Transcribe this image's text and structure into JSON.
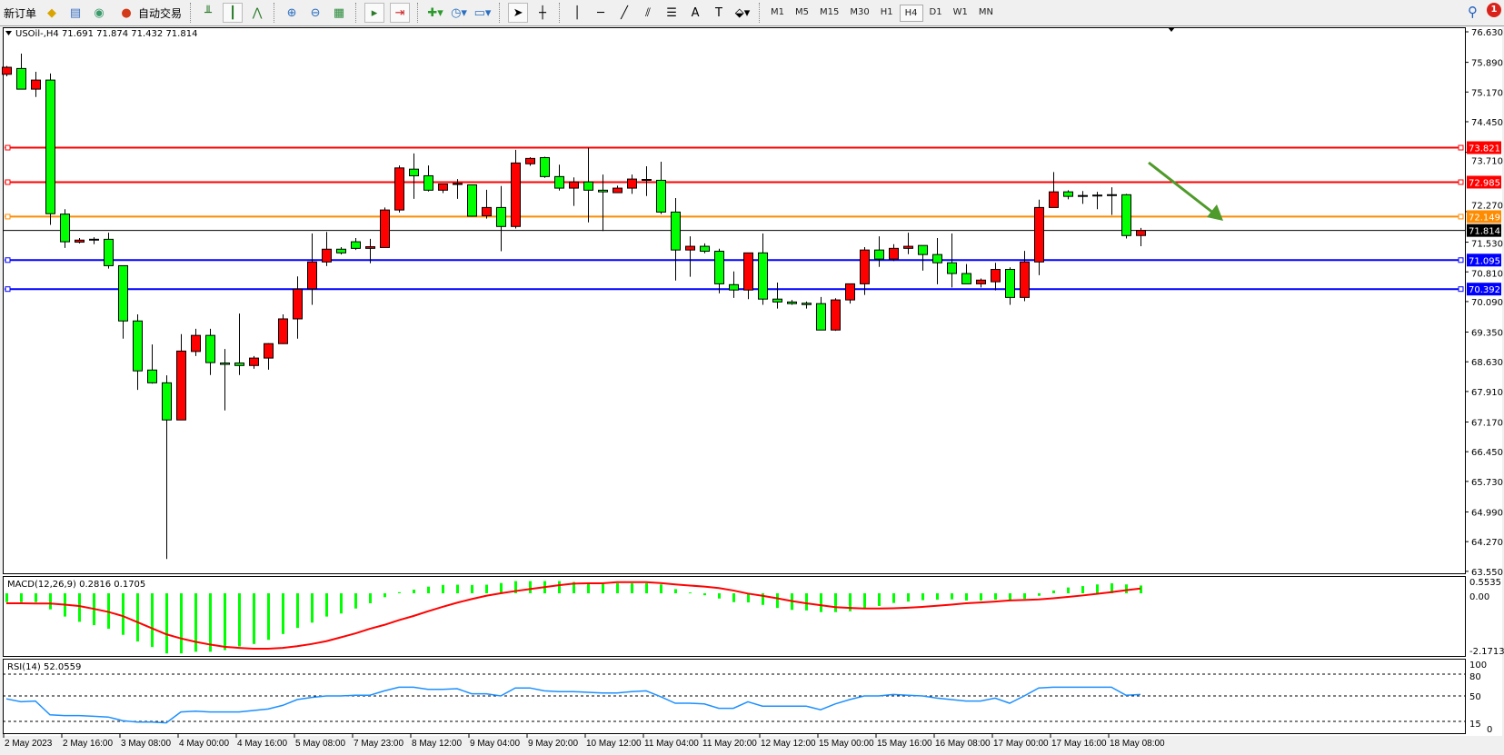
{
  "toolbar": {
    "new_order_label": "新订单",
    "auto_trade_label": "自动交易",
    "timeframes": [
      "M1",
      "M5",
      "M15",
      "M30",
      "H1",
      "H4",
      "D1",
      "W1",
      "MN"
    ],
    "active_timeframe": "H4",
    "notification_count": "1"
  },
  "chart": {
    "header": "USOil-,H4  71.691 71.874 71.432 71.814",
    "up_color": "#ff0000",
    "down_color": "#00ff00",
    "price_ticks": [
      "76.630",
      "75.890",
      "75.170",
      "74.450",
      "73.710",
      "72.270",
      "71.530",
      "70.810",
      "70.090",
      "69.350",
      "68.630",
      "67.910",
      "67.170",
      "66.450",
      "65.730",
      "64.990",
      "64.270",
      "63.550"
    ],
    "levels": [
      {
        "price": 73.821,
        "label": "73.821",
        "color": "#ff0000"
      },
      {
        "price": 72.985,
        "label": "72.985",
        "color": "#ff0000"
      },
      {
        "price": 72.149,
        "label": "72.149",
        "color": "#ff8c00"
      },
      {
        "price": 71.095,
        "label": "71.095",
        "color": "#0000ff"
      },
      {
        "price": 70.392,
        "label": "70.392",
        "color": "#0000ff"
      }
    ],
    "bid": {
      "price": 71.814,
      "label": "71.814",
      "color": "#000000"
    },
    "arrow_color": "#4e9a2a",
    "candles": [
      [
        75.6,
        75.8,
        75.55,
        75.77
      ],
      [
        75.74,
        76.1,
        75.24,
        75.24
      ],
      [
        75.24,
        75.66,
        75.05,
        75.46
      ],
      [
        75.46,
        75.62,
        71.95,
        72.22
      ],
      [
        72.21,
        72.33,
        71.39,
        71.54
      ],
      [
        71.53,
        71.63,
        71.5,
        71.58
      ],
      [
        71.59,
        71.65,
        71.48,
        71.59
      ],
      [
        71.6,
        71.76,
        70.89,
        70.96
      ],
      [
        70.96,
        70.96,
        69.19,
        69.62
      ],
      [
        69.62,
        69.78,
        67.95,
        68.41
      ],
      [
        68.43,
        69.05,
        68.1,
        68.12
      ],
      [
        68.12,
        68.3,
        63.85,
        67.22
      ],
      [
        67.22,
        69.3,
        67.22,
        68.89
      ],
      [
        68.88,
        69.43,
        68.77,
        69.27
      ],
      [
        69.27,
        69.43,
        68.31,
        68.61
      ],
      [
        68.6,
        68.94,
        67.45,
        68.59
      ],
      [
        68.6,
        69.8,
        68.31,
        68.54
      ],
      [
        68.54,
        68.77,
        68.46,
        68.72
      ],
      [
        68.72,
        69.08,
        68.44,
        69.07
      ],
      [
        69.07,
        69.78,
        69.06,
        69.67
      ],
      [
        69.67,
        70.7,
        69.19,
        70.39
      ],
      [
        70.4,
        71.74,
        70.01,
        71.05
      ],
      [
        71.05,
        71.78,
        70.95,
        71.36
      ],
      [
        71.36,
        71.41,
        71.23,
        71.27
      ],
      [
        71.54,
        71.63,
        71.34,
        71.38
      ],
      [
        71.38,
        71.61,
        71.02,
        71.42
      ],
      [
        71.4,
        72.37,
        71.4,
        72.31
      ],
      [
        72.31,
        73.39,
        72.25,
        73.33
      ],
      [
        73.3,
        73.68,
        72.58,
        73.14
      ],
      [
        73.14,
        73.39,
        72.76,
        72.79
      ],
      [
        72.79,
        72.95,
        72.72,
        72.94
      ],
      [
        72.94,
        73.06,
        72.58,
        72.94
      ],
      [
        72.92,
        72.92,
        72.15,
        72.16
      ],
      [
        72.17,
        72.8,
        72.1,
        72.37
      ],
      [
        72.37,
        72.89,
        71.31,
        71.91
      ],
      [
        71.91,
        73.77,
        71.86,
        73.45
      ],
      [
        73.43,
        73.59,
        73.38,
        73.56
      ],
      [
        73.58,
        73.6,
        73.09,
        73.12
      ],
      [
        73.12,
        73.41,
        72.78,
        72.84
      ],
      [
        72.84,
        73.1,
        72.41,
        72.99
      ],
      [
        72.99,
        73.82,
        72.01,
        72.79
      ],
      [
        72.79,
        73.17,
        71.8,
        72.75
      ],
      [
        72.73,
        72.9,
        72.72,
        72.84
      ],
      [
        72.84,
        73.17,
        72.7,
        73.06
      ],
      [
        73.04,
        73.37,
        72.65,
        73.04
      ],
      [
        73.03,
        73.48,
        72.21,
        72.26
      ],
      [
        72.26,
        72.6,
        70.6,
        71.34
      ],
      [
        71.34,
        71.67,
        70.69,
        71.43
      ],
      [
        71.43,
        71.5,
        71.26,
        71.31
      ],
      [
        71.31,
        71.37,
        70.29,
        70.52
      ],
      [
        70.5,
        70.82,
        70.18,
        70.37
      ],
      [
        70.37,
        71.27,
        70.15,
        71.27
      ],
      [
        71.27,
        71.74,
        70.01,
        70.15
      ],
      [
        70.15,
        70.55,
        69.92,
        70.08
      ],
      [
        70.08,
        70.13,
        70.01,
        70.04
      ],
      [
        70.05,
        70.09,
        69.92,
        70.04
      ],
      [
        70.04,
        70.2,
        69.4,
        69.4
      ],
      [
        69.4,
        70.17,
        69.38,
        70.13
      ],
      [
        70.13,
        70.52,
        70.04,
        70.52
      ],
      [
        70.52,
        71.41,
        70.25,
        71.34
      ],
      [
        71.34,
        71.67,
        70.93,
        71.12
      ],
      [
        71.12,
        71.48,
        71.07,
        71.38
      ],
      [
        71.38,
        71.76,
        71.24,
        71.43
      ],
      [
        71.45,
        71.45,
        70.84,
        71.23
      ],
      [
        71.23,
        71.63,
        70.51,
        71.03
      ],
      [
        71.03,
        71.74,
        70.43,
        70.77
      ],
      [
        70.77,
        71.0,
        70.52,
        70.52
      ],
      [
        70.52,
        70.65,
        70.43,
        70.61
      ],
      [
        70.57,
        71.03,
        70.36,
        70.87
      ],
      [
        70.87,
        70.92,
        70.01,
        70.19
      ],
      [
        70.19,
        71.32,
        70.1,
        71.05
      ],
      [
        71.05,
        72.56,
        70.73,
        72.37
      ],
      [
        72.37,
        73.23,
        72.37,
        72.75
      ],
      [
        72.75,
        72.79,
        72.57,
        72.64
      ],
      [
        72.65,
        72.77,
        72.46,
        72.65
      ],
      [
        72.66,
        72.75,
        72.33,
        72.66
      ],
      [
        72.67,
        72.86,
        72.19,
        72.67
      ],
      [
        72.68,
        72.7,
        71.62,
        71.69
      ],
      [
        71.691,
        71.874,
        71.432,
        71.814
      ]
    ],
    "date_labels": [
      "2 May 2023",
      "2 May 16:00",
      "3 May 08:00",
      "4 May 00:00",
      "4 May 16:00",
      "5 May 08:00",
      "7 May 23:00",
      "8 May 12:00",
      "9 May 04:00",
      "9 May 20:00",
      "10 May 12:00",
      "11 May 04:00",
      "11 May 20:00",
      "12 May 12:00",
      "15 May 00:00",
      "15 May 16:00",
      "16 May 08:00",
      "17 May 00:00",
      "17 May 16:00",
      "18 May 08:00"
    ]
  },
  "macd": {
    "header": "MACD(12,26,9) 0.2816 0.1705",
    "ticks": [
      "0.5535",
      "0.00",
      "-2.1713"
    ],
    "hist_color": "#00ff00",
    "signal_color": "#ff0000",
    "histogram": [
      -0.32,
      -0.32,
      -0.32,
      -0.58,
      -0.84,
      -1.03,
      -1.15,
      -1.28,
      -1.5,
      -1.74,
      -1.94,
      -2.17,
      -2.17,
      -2.11,
      -2.11,
      -2.05,
      -1.92,
      -1.83,
      -1.68,
      -1.47,
      -1.25,
      -1.06,
      -0.84,
      -0.73,
      -0.55,
      -0.36,
      -0.14,
      0.04,
      0.13,
      0.24,
      0.3,
      0.31,
      0.3,
      0.31,
      0.37,
      0.44,
      0.44,
      0.44,
      0.44,
      0.41,
      0.34,
      0.34,
      0.36,
      0.36,
      0.36,
      0.32,
      0.15,
      0.03,
      -0.07,
      -0.19,
      -0.32,
      -0.33,
      -0.42,
      -0.53,
      -0.6,
      -0.62,
      -0.68,
      -0.68,
      -0.65,
      -0.53,
      -0.46,
      -0.35,
      -0.3,
      -0.25,
      -0.23,
      -0.22,
      -0.26,
      -0.26,
      -0.23,
      -0.23,
      -0.2,
      -0.09,
      0.1,
      0.21,
      0.26,
      0.32,
      0.36,
      0.32,
      0.2816
    ],
    "signal": [
      -0.36,
      -0.36,
      -0.37,
      -0.37,
      -0.41,
      -0.46,
      -0.56,
      -0.67,
      -0.82,
      -1.04,
      -1.26,
      -1.48,
      -1.63,
      -1.75,
      -1.85,
      -1.93,
      -1.97,
      -2.0,
      -2.0,
      -1.97,
      -1.91,
      -1.83,
      -1.73,
      -1.59,
      -1.45,
      -1.28,
      -1.14,
      -0.97,
      -0.82,
      -0.65,
      -0.49,
      -0.34,
      -0.21,
      -0.09,
      0.0,
      0.08,
      0.15,
      0.22,
      0.29,
      0.35,
      0.36,
      0.36,
      0.4,
      0.4,
      0.4,
      0.37,
      0.32,
      0.28,
      0.24,
      0.19,
      0.1,
      -0.01,
      -0.09,
      -0.18,
      -0.28,
      -0.36,
      -0.43,
      -0.5,
      -0.53,
      -0.55,
      -0.55,
      -0.54,
      -0.52,
      -0.49,
      -0.45,
      -0.41,
      -0.36,
      -0.33,
      -0.3,
      -0.26,
      -0.24,
      -0.22,
      -0.18,
      -0.13,
      -0.08,
      -0.02,
      0.04,
      0.11,
      0.1705
    ]
  },
  "rsi": {
    "header": "RSI(14) 52.0559",
    "ticks": [
      "100",
      "80",
      "50",
      "15",
      "0"
    ],
    "color": "#1e90ff",
    "values": [
      46,
      42,
      43,
      24,
      23,
      23,
      22,
      21,
      16,
      14,
      14,
      13,
      28,
      29,
      28,
      28,
      28,
      30,
      32,
      37,
      45,
      48,
      50,
      50,
      51,
      51,
      57,
      62,
      62,
      59,
      59,
      60,
      53,
      53,
      50,
      61,
      61,
      57,
      56,
      56,
      55,
      54,
      54,
      56,
      57,
      49,
      40,
      40,
      39,
      33,
      33,
      42,
      36,
      36,
      36,
      36,
      31,
      39,
      45,
      50,
      50,
      52,
      51,
      50,
      47,
      45,
      43,
      43,
      47,
      40,
      50,
      61,
      62,
      62,
      62,
      62,
      62,
      51,
      52.0559
    ]
  }
}
